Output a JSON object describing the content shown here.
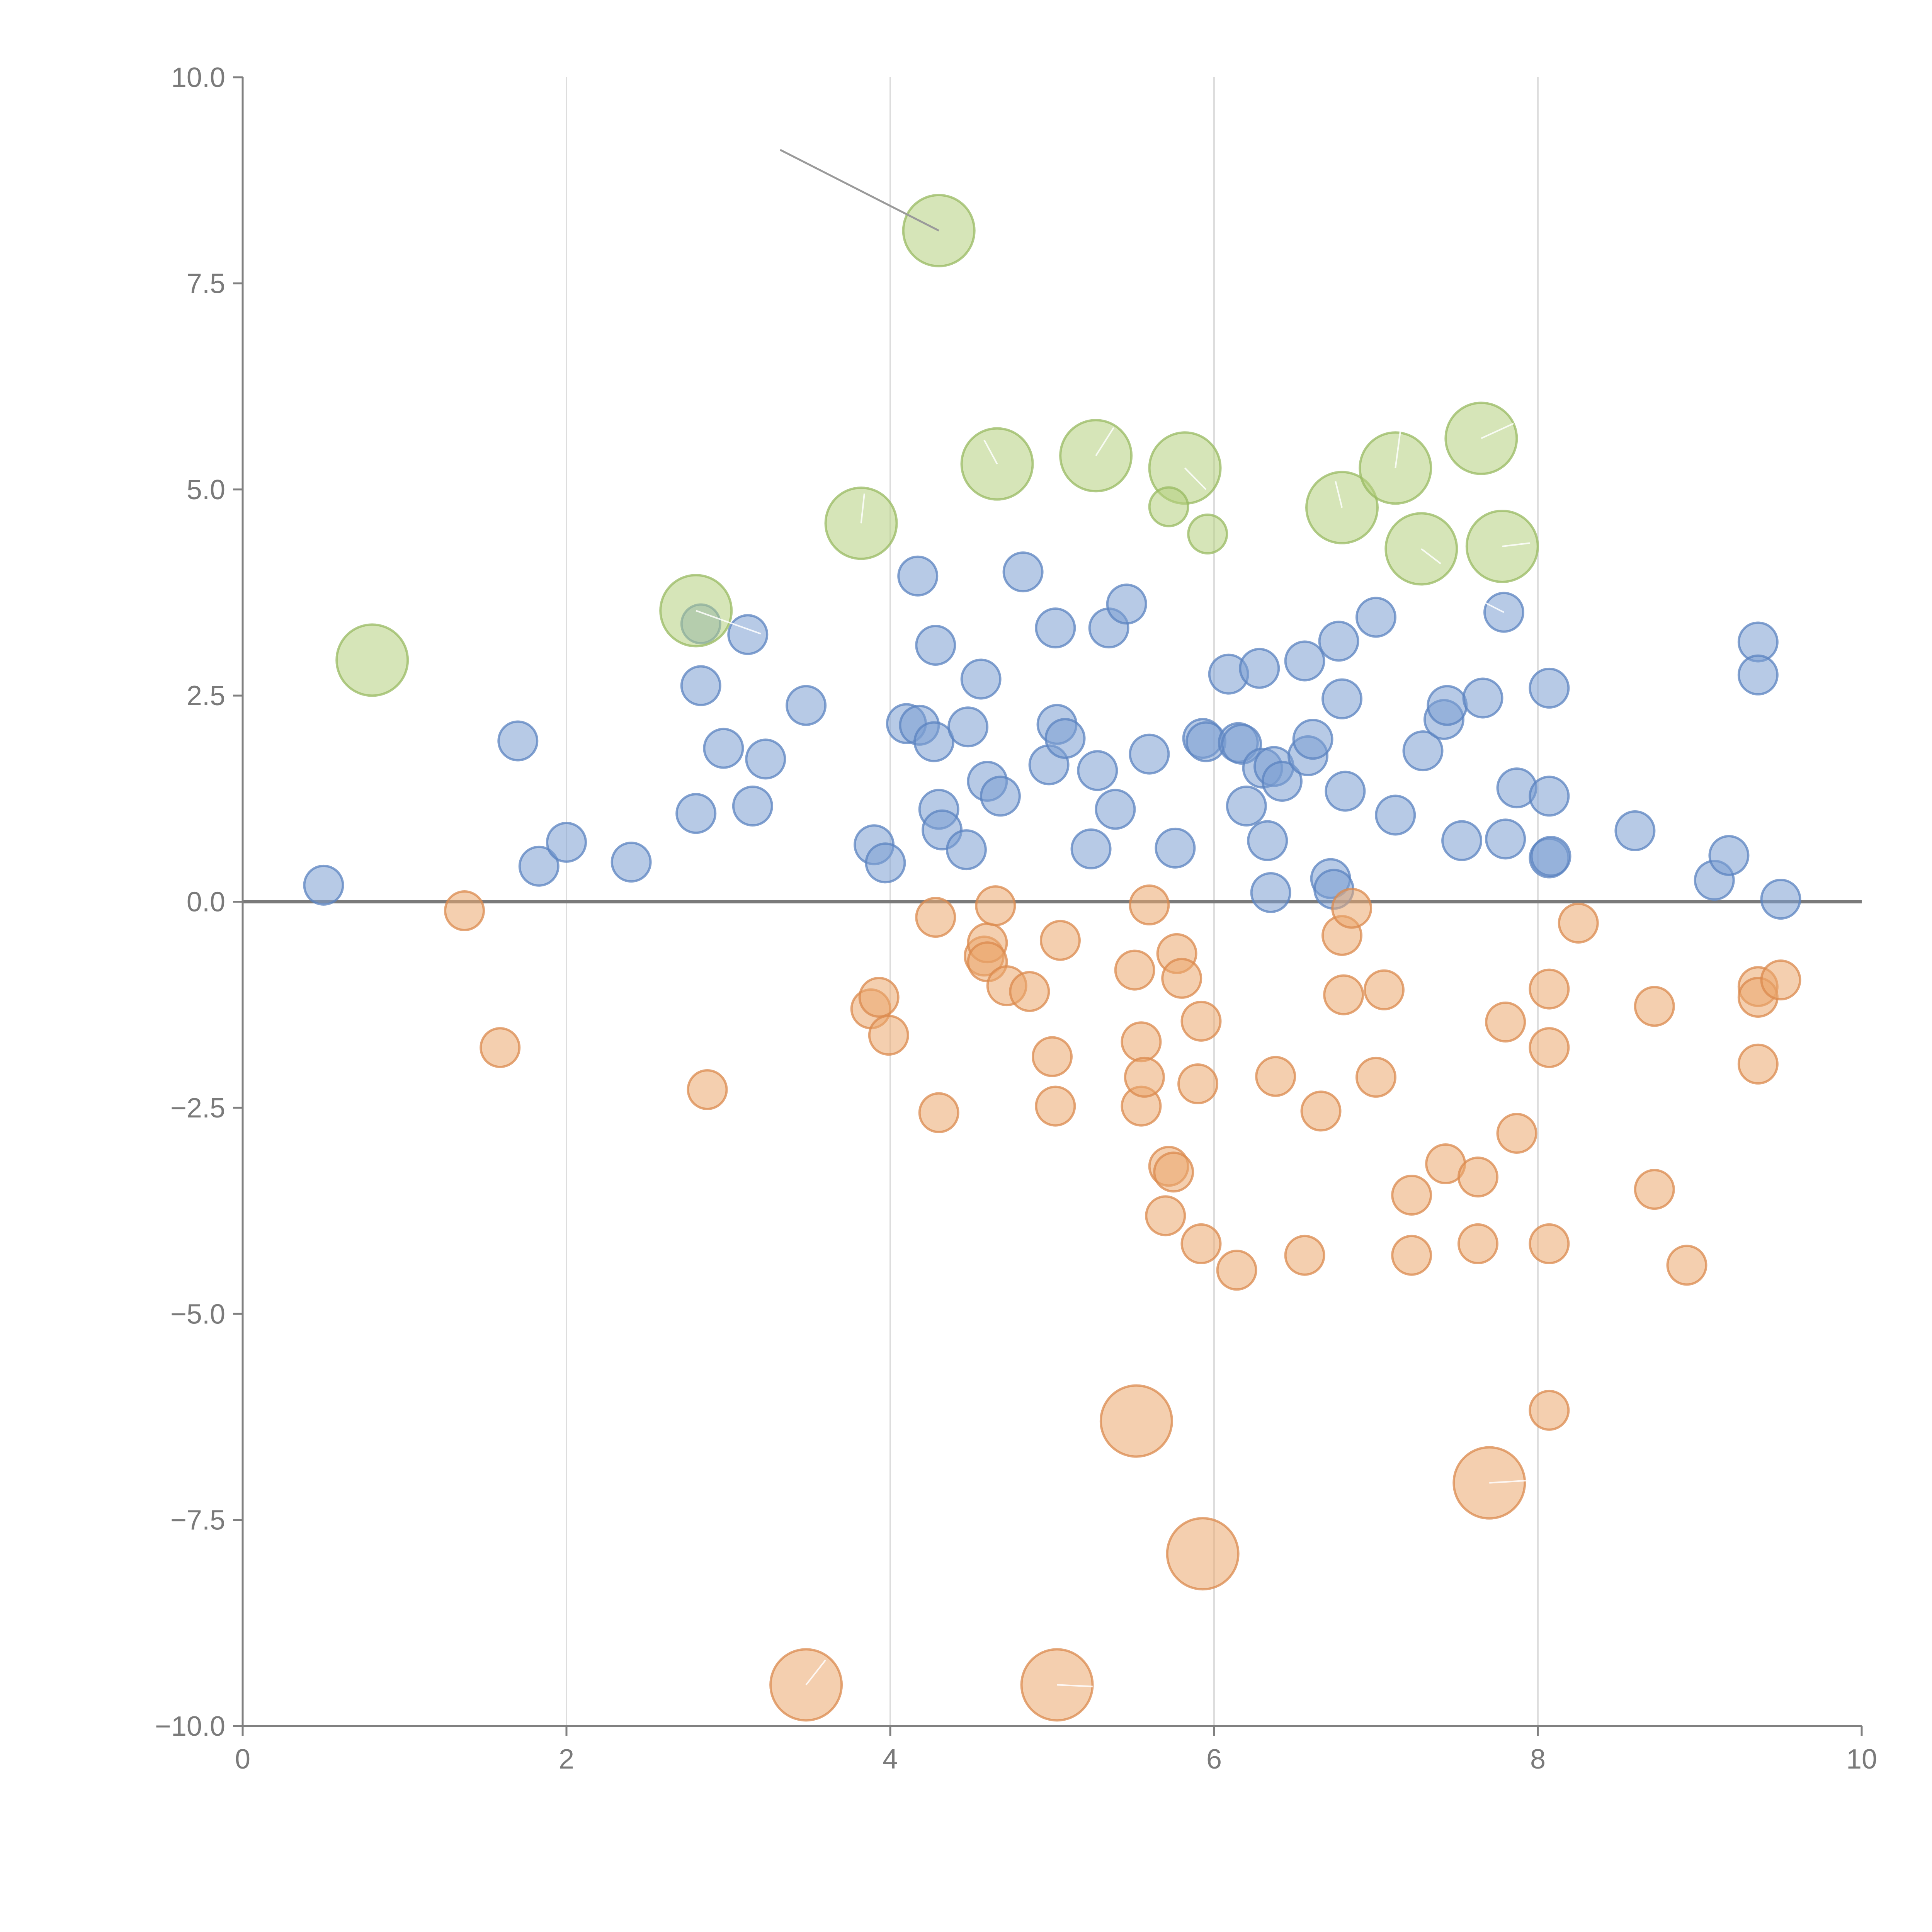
{
  "chart_data": {
    "type": "scatter",
    "title": "",
    "xlabel": "",
    "ylabel": "",
    "xlim": [
      0,
      10
    ],
    "ylim": [
      -10,
      10
    ],
    "x_ticks": [
      0,
      2,
      4,
      6,
      8,
      10
    ],
    "y_ticks": [
      -10,
      -7.5,
      -5,
      -2.5,
      0,
      2.5,
      5,
      7.5,
      10
    ],
    "x_tick_labels": [
      "0",
      "2",
      "4",
      "6",
      "8",
      "10"
    ],
    "y_tick_labels": [
      "−10.0",
      "−7.5",
      "−5.0",
      "−2.5",
      "0.0",
      "2.5",
      "5.0",
      "7.5",
      "10.0"
    ],
    "grid": "vertical",
    "zero_line": true,
    "colors": {
      "blue": "#7b9fd1",
      "blue_stroke": "#5b83c0",
      "orange": "#eba86e",
      "orange_stroke": "#db8a4d",
      "green": "#b4d07e",
      "green_stroke": "#98ba62",
      "axis": "#808080",
      "grid": "#dddddd"
    },
    "series": [
      {
        "name": "blue",
        "color": "blue",
        "size": 1,
        "points": [
          [
            0.5,
            0.2
          ],
          [
            1.7,
            1.95
          ],
          [
            1.83,
            0.43
          ],
          [
            2.0,
            0.72
          ],
          [
            2.4,
            0.48
          ],
          [
            2.8,
            1.07
          ],
          [
            2.83,
            2.62
          ],
          [
            2.83,
            3.37
          ],
          [
            2.97,
            1.86
          ],
          [
            3.12,
            3.24
          ],
          [
            3.15,
            1.16
          ],
          [
            3.23,
            1.73
          ],
          [
            3.48,
            2.38
          ],
          [
            3.9,
            0.69
          ],
          [
            3.97,
            0.47
          ],
          [
            4.1,
            2.16
          ],
          [
            4.17,
            3.95
          ],
          [
            4.18,
            2.14
          ],
          [
            4.27,
            1.94
          ],
          [
            4.28,
            3.11
          ],
          [
            4.3,
            1.12
          ],
          [
            4.32,
            0.87
          ],
          [
            4.47,
            0.63
          ],
          [
            4.48,
            2.12
          ],
          [
            4.56,
            2.7
          ],
          [
            4.6,
            1.46
          ],
          [
            4.68,
            1.28
          ],
          [
            4.82,
            4.0
          ],
          [
            4.98,
            1.66
          ],
          [
            5.02,
            3.32
          ],
          [
            5.03,
            2.15
          ],
          [
            5.08,
            1.98
          ],
          [
            5.24,
            0.64
          ],
          [
            5.28,
            1.59
          ],
          [
            5.35,
            3.32
          ],
          [
            5.39,
            1.12
          ],
          [
            5.46,
            3.61
          ],
          [
            5.6,
            1.79
          ],
          [
            5.76,
            0.65
          ],
          [
            5.93,
            1.98
          ],
          [
            5.95,
            1.94
          ],
          [
            6.09,
            2.76
          ],
          [
            6.15,
            1.93
          ],
          [
            6.17,
            1.91
          ],
          [
            6.2,
            1.16
          ],
          [
            6.28,
            2.83
          ],
          [
            6.3,
            1.62
          ],
          [
            6.33,
            0.74
          ],
          [
            6.35,
            0.11
          ],
          [
            6.37,
            1.64
          ],
          [
            6.42,
            1.46
          ],
          [
            6.56,
            2.92
          ],
          [
            6.58,
            1.77
          ],
          [
            6.61,
            1.97
          ],
          [
            6.72,
            0.28
          ],
          [
            6.74,
            0.15
          ],
          [
            6.77,
            3.16
          ],
          [
            6.79,
            2.46
          ],
          [
            6.81,
            1.34
          ],
          [
            7.0,
            3.45
          ],
          [
            7.12,
            1.05
          ],
          [
            7.29,
            1.83
          ],
          [
            7.42,
            2.21
          ],
          [
            7.44,
            2.38
          ],
          [
            7.53,
            0.74
          ],
          [
            7.66,
            2.47
          ],
          [
            7.79,
            3.51
          ],
          [
            7.8,
            0.76
          ],
          [
            7.87,
            1.38
          ],
          [
            8.07,
            2.59
          ],
          [
            8.07,
            1.28
          ],
          [
            8.07,
            0.53
          ],
          [
            8.08,
            0.55
          ],
          [
            8.6,
            0.86
          ],
          [
            9.09,
            0.26
          ],
          [
            9.18,
            0.56
          ],
          [
            9.36,
            3.15
          ],
          [
            9.36,
            2.75
          ],
          [
            9.5,
            0.03
          ]
        ]
      },
      {
        "name": "orange",
        "color": "orange",
        "size": 1,
        "points": [
          [
            1.37,
            -0.11
          ],
          [
            1.59,
            -1.77
          ],
          [
            2.87,
            -2.28
          ],
          [
            3.88,
            -1.3
          ],
          [
            3.93,
            -1.16
          ],
          [
            3.99,
            -1.62
          ],
          [
            4.28,
            -0.19
          ],
          [
            4.3,
            -2.56
          ],
          [
            4.58,
            -0.66
          ],
          [
            4.6,
            -0.5
          ],
          [
            4.6,
            -0.73
          ],
          [
            4.65,
            -0.05
          ],
          [
            4.72,
            -1.02
          ],
          [
            4.86,
            -1.09
          ],
          [
            5.0,
            -1.88
          ],
          [
            5.02,
            -2.48
          ],
          [
            5.05,
            -0.47
          ],
          [
            5.51,
            -0.83
          ],
          [
            5.55,
            -1.7
          ],
          [
            5.55,
            -2.48
          ],
          [
            5.57,
            -2.13
          ],
          [
            5.6,
            -0.04
          ],
          [
            5.7,
            -3.81
          ],
          [
            5.72,
            -3.21
          ],
          [
            5.75,
            -3.28
          ],
          [
            5.77,
            -0.63
          ],
          [
            5.8,
            -0.93
          ],
          [
            5.9,
            -2.21
          ],
          [
            5.92,
            -1.45
          ],
          [
            5.92,
            -4.15
          ],
          [
            6.14,
            -4.47
          ],
          [
            6.38,
            -2.12
          ],
          [
            6.56,
            -4.29
          ],
          [
            6.66,
            -2.54
          ],
          [
            6.79,
            -0.41
          ],
          [
            6.8,
            -1.13
          ],
          [
            6.85,
            -0.08
          ],
          [
            7.0,
            -2.13
          ],
          [
            7.05,
            -1.07
          ],
          [
            7.22,
            -3.56
          ],
          [
            7.22,
            -4.29
          ],
          [
            7.43,
            -3.18
          ],
          [
            7.63,
            -3.34
          ],
          [
            7.63,
            -4.15
          ],
          [
            7.8,
            -1.46
          ],
          [
            7.87,
            -2.81
          ],
          [
            8.07,
            -1.06
          ],
          [
            8.07,
            -1.77
          ],
          [
            8.07,
            -4.15
          ],
          [
            8.07,
            -6.17
          ],
          [
            8.25,
            -0.26
          ],
          [
            8.72,
            -1.27
          ],
          [
            8.72,
            -3.49
          ],
          [
            8.92,
            -4.41
          ],
          [
            9.36,
            -1.03
          ],
          [
            9.36,
            -1.16
          ],
          [
            9.36,
            -1.97
          ],
          [
            9.5,
            -0.95
          ]
        ]
      },
      {
        "name": "orange-large",
        "color": "orange",
        "size": 2,
        "points": [
          [
            3.48,
            -9.5
          ],
          [
            5.03,
            -9.5
          ],
          [
            5.52,
            -6.3
          ],
          [
            5.93,
            -7.91
          ],
          [
            7.7,
            -7.05
          ]
        ]
      },
      {
        "name": "green",
        "color": "green",
        "size": 2,
        "points": [
          [
            0.8,
            2.93
          ],
          [
            2.8,
            3.53
          ],
          [
            3.82,
            4.59
          ],
          [
            4.3,
            8.14
          ],
          [
            4.66,
            5.31
          ],
          [
            5.27,
            5.41
          ],
          [
            5.82,
            5.26
          ],
          [
            6.79,
            4.78
          ],
          [
            7.12,
            5.26
          ],
          [
            7.28,
            4.28
          ],
          [
            7.65,
            5.62
          ],
          [
            7.78,
            4.31
          ]
        ]
      },
      {
        "name": "green-small",
        "color": "green",
        "size": 1,
        "points": [
          [
            5.72,
            4.79
          ],
          [
            5.96,
            4.46
          ]
        ]
      }
    ]
  }
}
